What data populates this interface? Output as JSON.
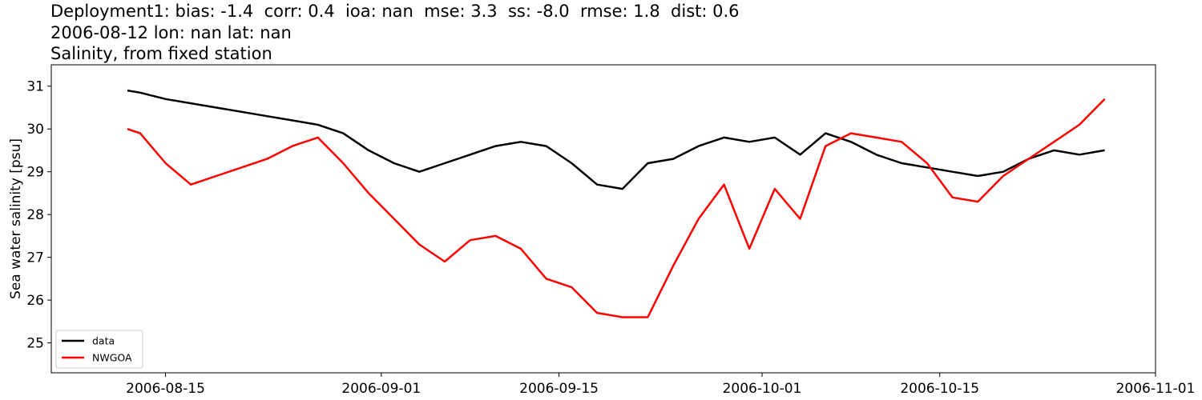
{
  "chart_data": {
    "type": "line",
    "title_lines": [
      "Deployment1: bias: -1.4  corr: 0.4  ioa: nan  mse: 3.3  ss: -8.0  rmse: 1.8  dist: 0.6",
      "2006-08-12 lon: nan lat: nan",
      "Salinity, from fixed station"
    ],
    "xlabel": "",
    "ylabel": "Sea water salinity [psu]",
    "xlim": [
      "2006-08-06",
      "2006-11-01"
    ],
    "ylim": [
      24.3,
      31.5
    ],
    "x_ticks": [
      "2006-08-15",
      "2006-09-01",
      "2006-09-15",
      "2006-10-01",
      "2006-10-15",
      "2006-11-01"
    ],
    "y_ticks": [
      25,
      26,
      27,
      28,
      29,
      30,
      31
    ],
    "grid": false,
    "legend_position": "lower-left",
    "series": [
      {
        "name": "data",
        "color": "#000000",
        "x": [
          "2006-08-12",
          "2006-08-13",
          "2006-08-15",
          "2006-08-17",
          "2006-08-19",
          "2006-08-21",
          "2006-08-23",
          "2006-08-25",
          "2006-08-27",
          "2006-08-29",
          "2006-08-31",
          "2006-09-02",
          "2006-09-04",
          "2006-09-06",
          "2006-09-08",
          "2006-09-10",
          "2006-09-12",
          "2006-09-14",
          "2006-09-16",
          "2006-09-18",
          "2006-09-20",
          "2006-09-22",
          "2006-09-24",
          "2006-09-26",
          "2006-09-28",
          "2006-09-30",
          "2006-10-02",
          "2006-10-04",
          "2006-10-06",
          "2006-10-08",
          "2006-10-10",
          "2006-10-12",
          "2006-10-14",
          "2006-10-16",
          "2006-10-18",
          "2006-10-20",
          "2006-10-22",
          "2006-10-24",
          "2006-10-26",
          "2006-10-28"
        ],
        "y": [
          30.9,
          30.85,
          30.7,
          30.6,
          30.5,
          30.4,
          30.3,
          30.2,
          30.1,
          29.9,
          29.5,
          29.2,
          29.0,
          29.2,
          29.4,
          29.6,
          29.7,
          29.6,
          29.2,
          28.7,
          28.6,
          29.2,
          29.3,
          29.6,
          29.8,
          29.7,
          29.8,
          29.4,
          29.9,
          29.7,
          29.4,
          29.2,
          29.1,
          29.0,
          28.9,
          29.0,
          29.3,
          29.5,
          29.4,
          29.5
        ]
      },
      {
        "name": "NWGOA",
        "color": "#ff0000",
        "x": [
          "2006-08-12",
          "2006-08-13",
          "2006-08-15",
          "2006-08-17",
          "2006-08-19",
          "2006-08-21",
          "2006-08-23",
          "2006-08-25",
          "2006-08-27",
          "2006-08-29",
          "2006-08-31",
          "2006-09-02",
          "2006-09-04",
          "2006-09-06",
          "2006-09-08",
          "2006-09-10",
          "2006-09-12",
          "2006-09-14",
          "2006-09-16",
          "2006-09-18",
          "2006-09-20",
          "2006-09-22",
          "2006-09-24",
          "2006-09-26",
          "2006-09-28",
          "2006-09-30",
          "2006-10-02",
          "2006-10-04",
          "2006-10-06",
          "2006-10-08",
          "2006-10-10",
          "2006-10-12",
          "2006-10-14",
          "2006-10-16",
          "2006-10-18",
          "2006-10-20",
          "2006-10-22",
          "2006-10-24",
          "2006-10-26",
          "2006-10-28"
        ],
        "y": [
          30.0,
          29.9,
          29.2,
          28.7,
          28.9,
          29.1,
          29.3,
          29.6,
          29.8,
          29.2,
          28.5,
          27.9,
          27.3,
          26.9,
          27.4,
          27.5,
          27.2,
          26.5,
          26.3,
          25.7,
          25.6,
          25.6,
          26.8,
          27.9,
          28.7,
          27.2,
          28.6,
          27.9,
          29.6,
          29.9,
          29.8,
          29.7,
          29.2,
          28.4,
          28.3,
          28.9,
          29.3,
          29.7,
          30.1,
          30.7
        ]
      }
    ]
  }
}
